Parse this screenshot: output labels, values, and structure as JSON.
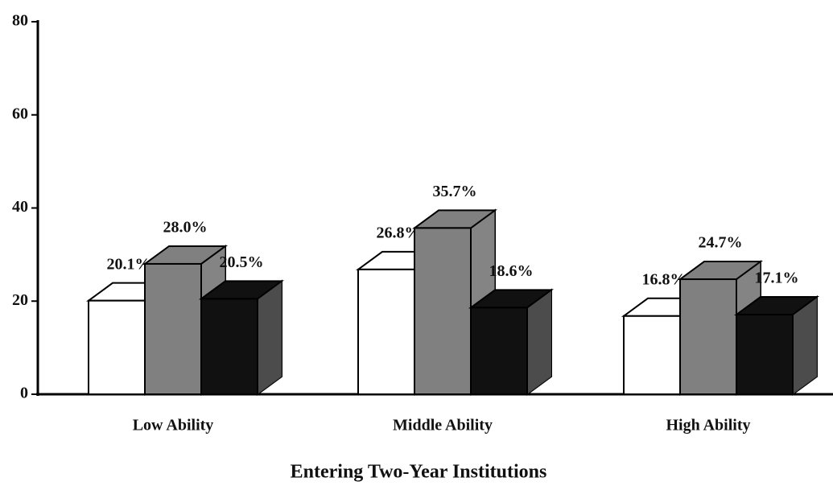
{
  "chart_data": {
    "type": "bar3d",
    "xlabel": "Entering Two-Year Institutions",
    "categories": [
      "Low Ability",
      "Middle Ability",
      "High Ability"
    ],
    "series": [
      {
        "color": "#ffffff",
        "values": [
          20.1,
          26.8,
          16.8
        ],
        "value_labels": [
          "20.1%",
          "26.8%",
          "16.8%"
        ]
      },
      {
        "color": "#808080",
        "values": [
          28.0,
          35.7,
          24.7
        ],
        "value_labels": [
          "28.0%",
          "35.7%",
          "24.7%"
        ]
      },
      {
        "color": "#111111",
        "values": [
          20.5,
          18.6,
          17.1
        ],
        "value_labels": [
          "20.5%",
          "18.6%",
          "17.1%"
        ]
      }
    ],
    "ylim": [
      0,
      80
    ],
    "yticks": [
      0,
      20,
      40,
      60,
      80
    ]
  }
}
